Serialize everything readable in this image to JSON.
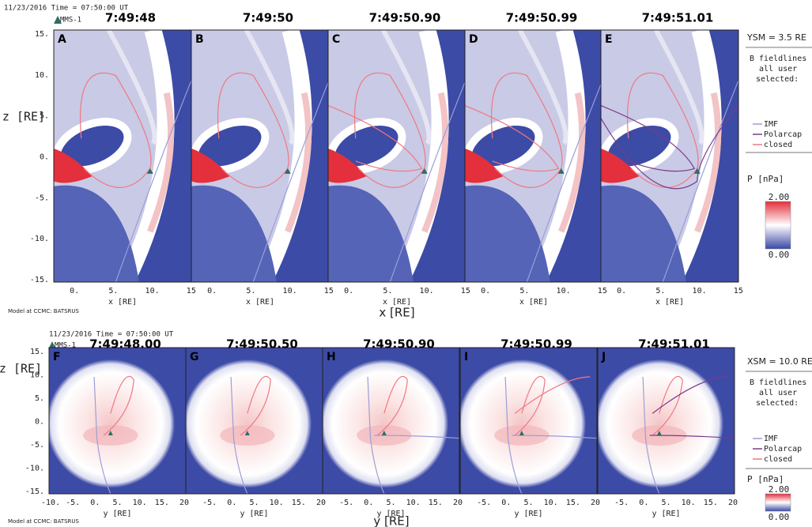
{
  "top_figure": {
    "timestamp": "11/23/2016 Time = 07:50:00 UT",
    "spacecraft": "MMS-1",
    "panels": [
      {
        "letter": "A",
        "time": "7:49:48"
      },
      {
        "letter": "B",
        "time": "7:49:50"
      },
      {
        "letter": "C",
        "time": "7:49:50.90"
      },
      {
        "letter": "D",
        "time": "7:49:50.99"
      },
      {
        "letter": "E",
        "time": "7:49:51.01"
      }
    ],
    "y_axis_label": "z [RE]",
    "y_ticks": [
      "15.",
      "10.",
      "5.",
      "0.",
      "-5.",
      "-10.",
      "-15."
    ],
    "x_ticks": [
      "0.",
      "5.",
      "10.",
      "15"
    ],
    "x_unit": "x [RE]",
    "x_axis_label": "x [RE]",
    "credit": "Model at CCMC: BATSRUS",
    "plane": "YSM = 3.5 RE",
    "legend": {
      "title": "B fieldlines",
      "subtitle_1": "all user",
      "subtitle_2": "selected:",
      "items": [
        "IMF",
        "Polarcap",
        "closed"
      ],
      "colorbar_title": "P [nPa]",
      "colorbar_max": "2.00",
      "colorbar_min": "0.00"
    }
  },
  "bottom_figure": {
    "timestamp": "11/23/2016 Time = 07:50:00 UT",
    "spacecraft": "MMS-1",
    "panels": [
      {
        "letter": "F",
        "time": "7:49:48.00"
      },
      {
        "letter": "G",
        "time": "7:49:50.50"
      },
      {
        "letter": "H",
        "time": "7:49:50.90"
      },
      {
        "letter": "I",
        "time": "7:49:50.99"
      },
      {
        "letter": "J",
        "time": "7:49:51.01"
      }
    ],
    "y_axis_label": "z [RE]",
    "y_ticks": [
      "15.",
      "10.",
      "5.",
      "0.",
      "-5.",
      "-10.",
      "-15."
    ],
    "x_ticks": [
      "-10.",
      "-5.",
      "0.",
      "5.",
      "10.",
      "15.",
      "20"
    ],
    "x_unit": "y [RE]",
    "x_axis_label": "y [RE]",
    "credit": "Model at CCMC: BATSRUS",
    "plane": "XSM = 10.0 RE",
    "legend": {
      "title": "B fieldlines",
      "subtitle_1": "all user",
      "subtitle_2": "selected:",
      "items": [
        "IMF",
        "Polarcap",
        "closed"
      ],
      "colorbar_title": "P [nPa]",
      "colorbar_max": "2.00",
      "colorbar_min": "0.00"
    }
  }
}
